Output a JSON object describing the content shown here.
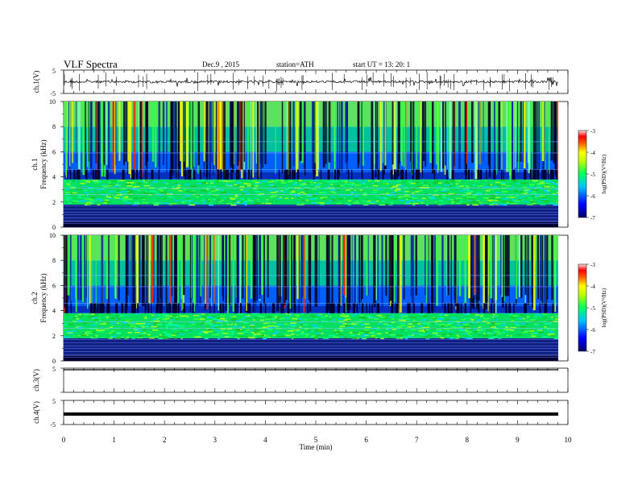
{
  "header": {
    "title": "VLF  Spectra",
    "date": "Dec.9  , 2015",
    "station": "station=ATH",
    "start": "start  UT  =    13: 20: 1"
  },
  "chart_data": [
    {
      "id": "ch1-waveform",
      "type": "line",
      "ylabel": "ch.1(V)",
      "ylim": [
        -5,
        5
      ],
      "yticks": [
        "5",
        "-5"
      ],
      "xlim": [
        0,
        10
      ],
      "description_series": [
        {
          "values": [
            -0.3,
            0.2,
            -0.5,
            0.4,
            -0.2,
            0.3,
            -0.6,
            0.1,
            -0.4,
            0.5,
            -0.1,
            0.2,
            -0.3,
            0.4,
            -0.5,
            0.2,
            -0.2,
            0.3,
            -0.4,
            0.1
          ]
        }
      ]
    },
    {
      "id": "ch1-spectrogram",
      "type": "heatmap",
      "ylabel": "ch.1\nFrequency  (kHz)",
      "ylim": [
        0,
        10
      ],
      "yticks": [
        "0",
        "2",
        "4",
        "6",
        "8",
        "10"
      ],
      "colorbar": {
        "label": "log(PSD)(V²/Hz)",
        "ticks": [
          "-3",
          "-4",
          "-5",
          "-6",
          "-7"
        ],
        "range": [
          -7,
          -3
        ]
      }
    },
    {
      "id": "ch2-spectrogram",
      "type": "heatmap",
      "ylabel": "ch.2\nFrequency  (kHz)",
      "ylim": [
        0,
        10
      ],
      "yticks": [
        "0",
        "2",
        "4",
        "6",
        "8",
        "10"
      ],
      "colorbar": {
        "label": "log(PSD)(V²/Hz)",
        "ticks": [
          "-3",
          "-4",
          "-5",
          "-6",
          "-7"
        ],
        "range": [
          -7,
          -3
        ]
      }
    },
    {
      "id": "ch3-waveform",
      "type": "line",
      "ylabel": "ch.3(V)",
      "yticks": [
        "5"
      ],
      "ylim": [
        -5,
        5
      ]
    },
    {
      "id": "ch4-waveform",
      "type": "line",
      "ylabel": "ch.4(V)",
      "yticks": [
        "5",
        "-5"
      ],
      "ylim": [
        -5,
        5
      ],
      "level": 0
    }
  ],
  "xaxis": {
    "label": "Time  (min)",
    "ticks": [
      "0",
      "1",
      "2",
      "3",
      "4",
      "5",
      "6",
      "7",
      "8",
      "9",
      "10"
    ],
    "xlim": [
      0,
      10
    ],
    "data_end": 9.8
  }
}
